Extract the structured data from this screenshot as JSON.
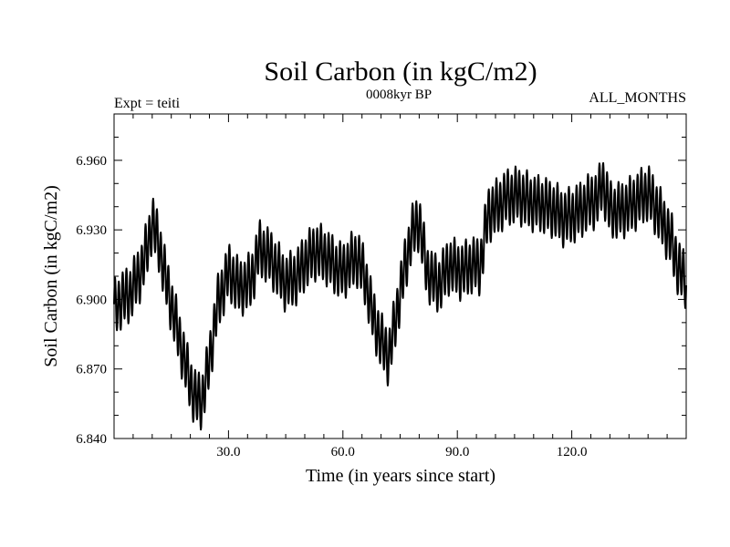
{
  "chart_data": {
    "type": "line",
    "title": "Soil Carbon (in kgC/m2)",
    "subtitle": "0008kyr BP",
    "left_label": "Expt = teiti",
    "right_label": "ALL_MONTHS",
    "xlabel": "Time (in years since start)",
    "ylabel": "Soil Carbon (in kgC/m2)",
    "xlim": [
      0,
      150
    ],
    "ylim": [
      6.84,
      6.98
    ],
    "xticks": [
      30,
      60,
      90,
      120
    ],
    "xtick_labels": [
      "30.0",
      "60.0",
      "90.0",
      "120.0"
    ],
    "yticks": [
      6.84,
      6.87,
      6.9,
      6.93,
      6.96
    ],
    "ytick_labels": [
      "6.840",
      "6.870",
      "6.900",
      "6.930",
      "6.960"
    ],
    "series": [
      {
        "name": "Soil Carbon",
        "color": "#000000",
        "annual_cycle_amplitude": 0.011,
        "baseline_x": [
          0,
          2,
          4,
          7,
          9,
          10,
          12,
          14,
          17,
          19,
          21,
          23,
          25,
          27,
          30,
          33,
          36,
          38,
          41,
          45,
          48,
          50,
          53,
          56,
          58,
          60,
          62,
          64,
          66,
          68,
          70,
          72,
          74,
          76,
          78,
          80,
          82,
          85,
          88,
          91,
          94,
          96,
          97,
          98,
          100,
          103,
          106,
          109,
          112,
          115,
          118,
          121,
          124,
          127,
          128,
          130,
          132,
          135,
          138,
          140,
          142,
          144,
          146,
          148,
          150
        ],
        "baseline_y": [
          6.896,
          6.9,
          6.902,
          6.912,
          6.924,
          6.934,
          6.922,
          6.905,
          6.884,
          6.87,
          6.858,
          6.856,
          6.873,
          6.897,
          6.912,
          6.905,
          6.908,
          6.922,
          6.918,
          6.907,
          6.91,
          6.916,
          6.921,
          6.918,
          6.914,
          6.912,
          6.916,
          6.918,
          6.908,
          6.892,
          6.882,
          6.875,
          6.893,
          6.912,
          6.928,
          6.934,
          6.912,
          6.906,
          6.915,
          6.912,
          6.915,
          6.914,
          6.925,
          6.937,
          6.939,
          6.944,
          6.945,
          6.942,
          6.941,
          6.939,
          6.935,
          6.937,
          6.941,
          6.944,
          6.951,
          6.939,
          6.938,
          6.94,
          6.944,
          6.946,
          6.94,
          6.933,
          6.926,
          6.913,
          6.908
        ]
      }
    ]
  }
}
